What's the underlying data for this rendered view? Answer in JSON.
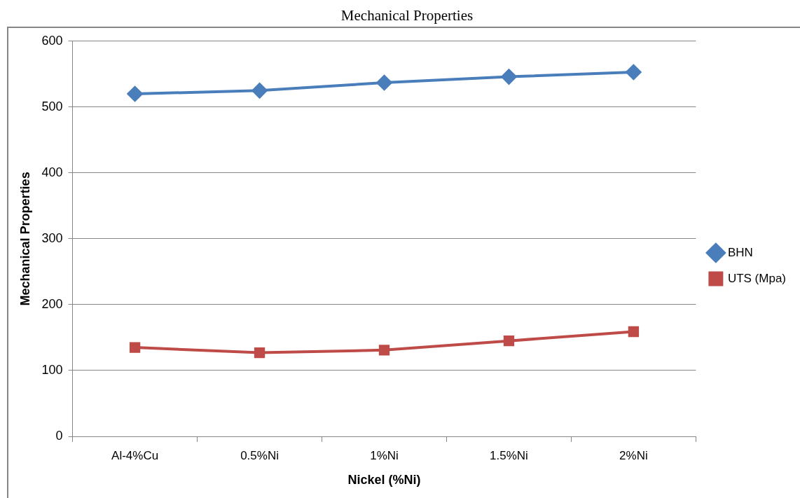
{
  "chart_data": {
    "type": "line",
    "title": "Mechanical Properties",
    "xlabel": "Nickel (%Ni)",
    "ylabel": "Mechanical Properties",
    "categories": [
      "Al-4%Cu",
      "0.5%Ni",
      "1%Ni",
      "1.5%Ni",
      "2%Ni"
    ],
    "series": [
      {
        "name": "BHN",
        "color": "#4a7ebb",
        "marker": "diamond",
        "values": [
          520,
          525,
          537,
          546,
          553
        ]
      },
      {
        "name": "UTS (Mpa)",
        "color": "#be4b48",
        "marker": "square",
        "values": [
          135,
          127,
          131,
          145,
          159
        ]
      }
    ],
    "ylim": [
      0,
      600
    ],
    "yticks": [
      0,
      100,
      200,
      300,
      400,
      500,
      600
    ],
    "grid": "y",
    "legend": "right",
    "line_style": "solid"
  }
}
